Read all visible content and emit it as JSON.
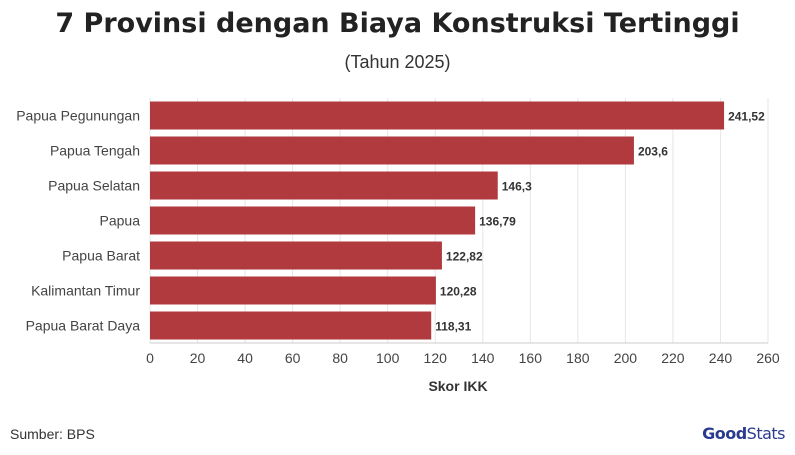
{
  "header": {
    "title": "7 Provinsi dengan Biaya Konstruksi Tertinggi",
    "subtitle": "(Tahun 2025)"
  },
  "footer": {
    "source": "Sumber: BPS",
    "brand_bold": "Good",
    "brand_regular": "Stats"
  },
  "colors": {
    "bar": "#b03a3e",
    "grid": "#e6e6e6",
    "axis_text": "#444444"
  },
  "chart_data": {
    "type": "bar",
    "orientation": "horizontal",
    "title": "7 Provinsi dengan Biaya Konstruksi Tertinggi",
    "subtitle": "(Tahun 2025)",
    "xlabel": "Skor IKK",
    "ylabel": "",
    "categories": [
      "Papua Pegunungan",
      "Papua Tengah",
      "Papua Selatan",
      "Papua",
      "Papua Barat",
      "Kalimantan Timur",
      "Papua Barat Daya"
    ],
    "values": [
      241.52,
      203.6,
      146.3,
      136.79,
      122.82,
      120.28,
      118.31
    ],
    "value_labels": [
      "241,52",
      "203,6",
      "146,3",
      "136,79",
      "122,82",
      "120,28",
      "118,31"
    ],
    "xlim": [
      0,
      260
    ],
    "xticks": [
      0,
      20,
      40,
      60,
      80,
      100,
      120,
      140,
      160,
      180,
      200,
      220,
      240,
      260
    ],
    "grid": true,
    "legend": "none"
  }
}
